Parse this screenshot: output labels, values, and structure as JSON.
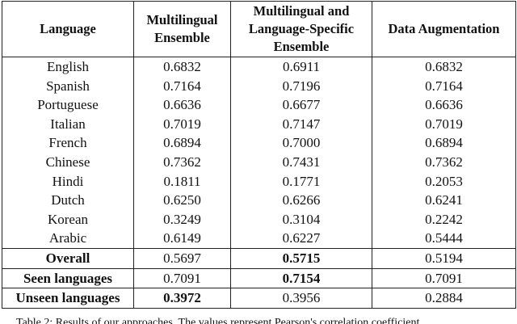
{
  "table": {
    "header": [
      "Language",
      "Multilingual Ensemble",
      "Multilingual and Language-Specific Ensemble",
      "Data Augmentation"
    ],
    "rows": [
      [
        "English",
        "0.6832",
        "0.6911",
        "0.6832"
      ],
      [
        "Spanish",
        "0.7164",
        "0.7196",
        "0.7164"
      ],
      [
        "Portuguese",
        "0.6636",
        "0.6677",
        "0.6636"
      ],
      [
        "Italian",
        "0.7019",
        "0.7147",
        "0.7019"
      ],
      [
        "French",
        "0.6894",
        "0.7000",
        "0.6894"
      ],
      [
        "Chinese",
        "0.7362",
        "0.7431",
        "0.7362"
      ],
      [
        "Hindi",
        "0.1811",
        "0.1771",
        "0.2053"
      ],
      [
        "Dutch",
        "0.6250",
        "0.6266",
        "0.6241"
      ],
      [
        "Korean",
        "0.3249",
        "0.3104",
        "0.2242"
      ],
      [
        "Arabic",
        "0.6149",
        "0.6227",
        "0.5444"
      ]
    ],
    "summary_rows": [
      [
        "Overall",
        "0.5697",
        "0.5715",
        "0.5194"
      ],
      [
        "Seen languages",
        "0.7091",
        "0.7154",
        "0.7091"
      ],
      [
        "Unseen languages",
        "0.3972",
        "0.3956",
        "0.2884"
      ]
    ],
    "bold_summary_cells": [
      [
        0,
        2
      ],
      [
        1,
        2
      ],
      [
        2,
        1
      ]
    ]
  },
  "caption": "Table 2: Results of our approaches. The values represent Pearson's correlation coefficient."
}
